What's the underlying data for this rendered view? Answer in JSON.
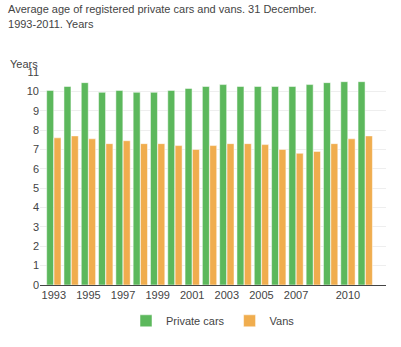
{
  "chart_data": {
    "type": "bar",
    "title": "Average age of registered private cars and vans. 31 December.\n1993-2011. Years",
    "ylabel": "Years",
    "x": [
      1993,
      1994,
      1995,
      1996,
      1997,
      1998,
      1999,
      2000,
      2001,
      2002,
      2003,
      2004,
      2005,
      2006,
      2007,
      2008,
      2009,
      2010,
      2011
    ],
    "series": [
      {
        "name": "Private cars",
        "color": "#5cb85c",
        "values": [
          10.05,
          10.25,
          10.45,
          9.95,
          10.05,
          9.95,
          9.95,
          10.05,
          10.15,
          10.25,
          10.35,
          10.25,
          10.25,
          10.25,
          10.25,
          10.35,
          10.45,
          10.5,
          10.5
        ]
      },
      {
        "name": "Vans",
        "color": "#f0ad4e",
        "values": [
          7.6,
          7.7,
          7.55,
          7.3,
          7.45,
          7.3,
          7.3,
          7.2,
          7.0,
          7.2,
          7.3,
          7.3,
          7.25,
          7.0,
          6.8,
          6.9,
          7.3,
          7.55,
          7.7
        ]
      }
    ],
    "xlim": [
      1992.2,
      2012.2
    ],
    "xticks": [
      1993,
      1995,
      1997,
      1999,
      2001,
      2003,
      2005,
      2007,
      2010
    ],
    "ylim": [
      0,
      11
    ],
    "yticks": [
      0,
      1,
      2,
      3,
      4,
      5,
      6,
      7,
      8,
      9,
      10,
      11
    ],
    "grid": true,
    "legend": "bottom"
  }
}
